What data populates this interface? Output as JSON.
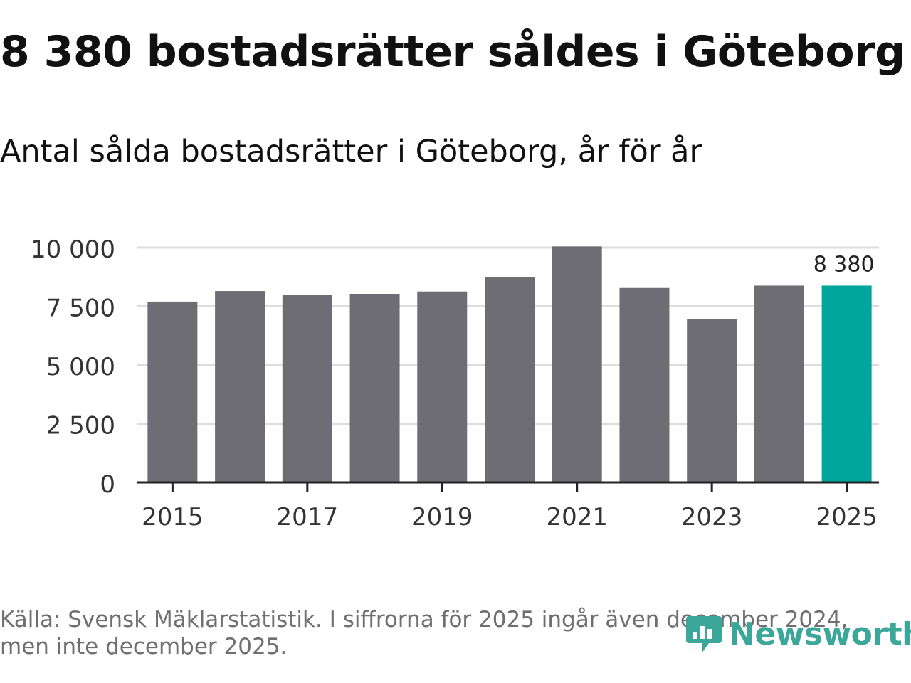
{
  "header": {
    "title": "8 380 bostadsrätter såldes i Göteborg",
    "subtitle": "Antal sålda bostadsrätter i Göteborg, år för år"
  },
  "chart_data": {
    "type": "bar",
    "categories": [
      "2015",
      "2016",
      "2017",
      "2018",
      "2019",
      "2020",
      "2021",
      "2022",
      "2023",
      "2024",
      "2025"
    ],
    "values": [
      7700,
      8150,
      8000,
      8030,
      8130,
      8750,
      10050,
      8280,
      6950,
      8380,
      8380
    ],
    "ylim": [
      0,
      10000
    ],
    "yticks": [
      0,
      2500,
      5000,
      7500,
      10000
    ],
    "ytick_labels": [
      "0",
      "2 500",
      "5 000",
      "7 500",
      "10 000"
    ],
    "xtick_labels": [
      "2015",
      "2017",
      "2019",
      "2021",
      "2023",
      "2025"
    ],
    "highlight_index": 10,
    "highlight_label": "8 380",
    "colors": {
      "bar": "#6e6d74",
      "highlight": "#00a69c",
      "grid": "#dddddd",
      "axis": "#222222",
      "text": "#333333"
    }
  },
  "footer": {
    "source": "Källa: Svensk Mäklarstatistik. I siffrorna för 2025 ingår även december 2024, men inte december 2025.",
    "brand": "Newsworthy",
    "brand_icon": "newsworthy-logo-icon",
    "brand_color": "#3aa79a"
  }
}
